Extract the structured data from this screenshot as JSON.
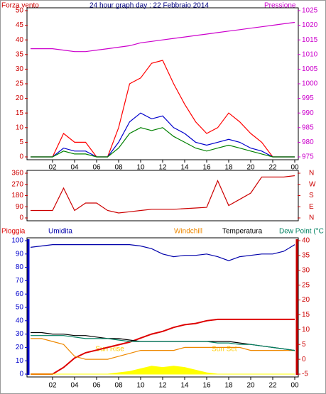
{
  "chart_data": [
    {
      "type": "line",
      "title": "24 hour graph day : 22 Febbraio 2014",
      "y_label": "Forza vento",
      "x": [
        0,
        1,
        2,
        3,
        4,
        5,
        6,
        7,
        8,
        9,
        10,
        11,
        12,
        13,
        14,
        15,
        16,
        17,
        18,
        19,
        20,
        21,
        22,
        23,
        24
      ],
      "xlim": [
        0,
        24
      ],
      "xticks": [
        {
          "value": 2,
          "label": "02"
        },
        {
          "value": 4,
          "label": "04"
        },
        {
          "value": 6,
          "label": "06"
        },
        {
          "value": 8,
          "label": "08"
        },
        {
          "value": 10,
          "label": "10"
        },
        {
          "value": 12,
          "label": "12"
        },
        14,
        16,
        18,
        20,
        22,
        {
          "value": 24,
          "label": "00"
        }
      ],
      "ylim": [
        0,
        50
      ],
      "yticks": [
        0,
        5,
        10,
        15,
        20,
        25,
        30,
        35,
        40,
        45,
        50
      ],
      "y2lim": [
        975,
        1025
      ],
      "y2ticks": [
        975,
        980,
        985,
        990,
        995,
        1000,
        1005,
        1010,
        1015,
        1020,
        1025
      ],
      "series": [
        {
          "color": "#ff0000",
          "values": [
            0,
            0,
            0,
            8,
            5,
            5,
            0,
            0,
            10,
            25,
            27,
            32,
            33,
            25,
            18,
            12,
            8,
            10,
            15,
            12,
            8,
            5,
            0,
            0,
            0
          ]
        },
        {
          "color": "#0000cc",
          "values": [
            0,
            0,
            0,
            3,
            2,
            2,
            0,
            0,
            5,
            12,
            15,
            13,
            14,
            10,
            8,
            5,
            4,
            5,
            6,
            5,
            3,
            2,
            0,
            0,
            0
          ]
        },
        {
          "color": "#008000",
          "values": [
            0,
            0,
            0,
            2,
            1,
            1,
            0,
            0,
            3,
            8,
            10,
            9,
            10,
            7,
            5,
            3,
            2,
            3,
            4,
            3,
            2,
            1,
            0,
            0,
            0
          ]
        },
        {
          "name": "Pressione",
          "color": "#cc00cc",
          "axis": "y2",
          "values": [
            1012,
            1012,
            1012,
            1011.5,
            1011,
            1011,
            1011.5,
            1012,
            1012.5,
            1013,
            1014,
            1014.5,
            1015,
            1015.5,
            1016,
            1016.5,
            1017,
            1017.5,
            1018,
            1018.5,
            1019,
            1019.5,
            1020,
            1020.5,
            1021
          ]
        }
      ]
    },
    {
      "type": "line",
      "x": [
        0,
        1,
        2,
        3,
        4,
        5,
        6,
        7,
        8,
        9,
        10,
        11,
        12,
        13,
        14,
        15,
        16,
        17,
        18,
        19,
        20,
        21,
        22,
        23,
        24
      ],
      "xlim": [
        0,
        24
      ],
      "ylim": [
        0,
        360
      ],
      "yticks": [
        0,
        90,
        180,
        270,
        360
      ],
      "y2lim": [
        0,
        360
      ],
      "y2ticks": [
        {
          "value": 0,
          "label": "N"
        },
        {
          "value": 90,
          "label": "E"
        },
        {
          "value": 180,
          "label": "S"
        },
        {
          "value": 270,
          "label": "W"
        },
        {
          "value": 360,
          "label": "N"
        }
      ],
      "series": [
        {
          "color": "#cc0000",
          "values": [
            60,
            60,
            60,
            240,
            60,
            120,
            120,
            60,
            40,
            50,
            60,
            70,
            70,
            70,
            75,
            80,
            85,
            300,
            100,
            150,
            200,
            330,
            330,
            330,
            340
          ]
        }
      ]
    },
    {
      "type": "line",
      "x": [
        0,
        1,
        2,
        3,
        4,
        5,
        6,
        7,
        8,
        9,
        10,
        11,
        12,
        13,
        14,
        15,
        16,
        17,
        18,
        19,
        20,
        21,
        22,
        23,
        24
      ],
      "xlim": [
        0,
        24
      ],
      "xticks": [
        {
          "value": 2,
          "label": "02"
        },
        {
          "value": 4,
          "label": "04"
        },
        {
          "value": 6,
          "label": "06"
        },
        {
          "value": 8,
          "label": "08"
        },
        {
          "value": 10,
          "label": "10"
        },
        {
          "value": 12,
          "label": "12"
        },
        14,
        16,
        18,
        20,
        22,
        {
          "value": 24,
          "label": "00"
        }
      ],
      "ylim": [
        0,
        100
      ],
      "yticks": [
        0,
        10,
        20,
        30,
        40,
        50,
        60,
        70,
        80,
        90,
        100
      ],
      "y2lim": [
        -5,
        40
      ],
      "y2ticks": [
        -5,
        0,
        5,
        10,
        15,
        20,
        25,
        30,
        35,
        40
      ],
      "annotations": [
        {
          "x": 7.2,
          "text": "Sun Rise"
        },
        {
          "x": 17.6,
          "text": "Sun Set"
        }
      ],
      "series": [
        {
          "name": "Pioggia",
          "color": "#dd0000",
          "values": [
            0,
            0,
            0,
            5,
            12,
            16,
            18,
            20,
            22,
            24,
            27,
            30,
            32,
            35,
            37,
            38,
            40,
            41,
            41,
            41,
            41,
            41,
            41,
            41,
            41
          ]
        },
        {
          "name": "Umidita",
          "color": "#0000aa",
          "values": [
            95,
            96,
            97,
            97,
            97,
            97,
            97,
            97,
            97,
            97,
            96,
            94,
            90,
            88,
            89,
            89,
            90,
            88,
            85,
            88,
            89,
            90,
            90,
            92,
            97
          ]
        },
        {
          "name": "Windchill",
          "color": "#ee8800",
          "axis": "y2",
          "values": [
            7,
            7,
            6,
            5,
            1,
            0,
            0,
            0,
            1,
            2,
            3,
            3,
            3,
            3,
            4,
            4,
            4,
            4,
            4,
            4,
            3,
            3,
            3,
            3,
            3
          ]
        },
        {
          "name": "Temperatura",
          "color": "#000000",
          "axis": "y2",
          "values": [
            9,
            9,
            8.5,
            8.5,
            8,
            8,
            7.5,
            7,
            7,
            6.5,
            6,
            6,
            6,
            6,
            6,
            6,
            6,
            6,
            6,
            5.5,
            5,
            4.5,
            4,
            3.5,
            3
          ]
        },
        {
          "name": "Dew Point (°C",
          "color": "#008060",
          "axis": "y2",
          "values": [
            8,
            8,
            8,
            8,
            7.5,
            7,
            7,
            7,
            6.5,
            6,
            6,
            6,
            6,
            6,
            6,
            6,
            6,
            5.5,
            5.5,
            5,
            5,
            4.5,
            4,
            3.5,
            3
          ]
        },
        {
          "color": "#ffff00",
          "fill": true,
          "values": [
            0,
            0,
            0,
            0,
            0,
            0,
            0,
            0,
            1,
            2,
            4,
            6,
            5,
            6,
            5,
            3,
            1,
            0,
            0,
            0,
            0,
            0,
            0,
            0,
            0
          ]
        }
      ]
    }
  ]
}
